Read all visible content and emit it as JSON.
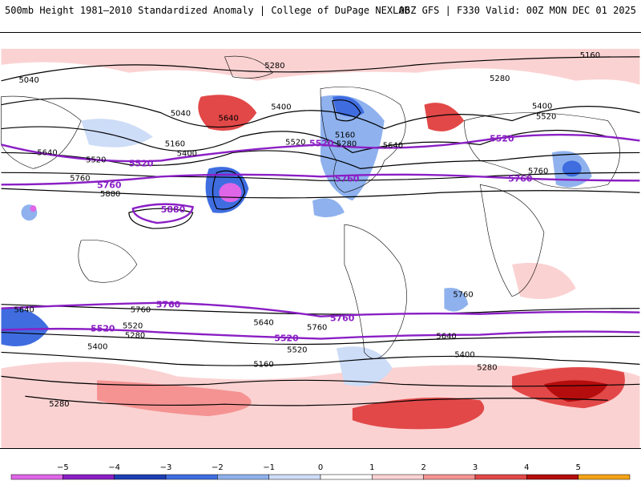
{
  "header": {
    "title_left": "500mb Height 1981–2010 Standardized Anomaly | College of DuPage NEXLAB",
    "title_right": "06Z GFS | F330 Valid: 00Z MON DEC 01 2025"
  },
  "map": {
    "contour_labels": [
      "5040",
      "5280",
      "5160",
      "5400",
      "5640",
      "5520",
      "5760",
      "5880",
      "5280",
      "5400",
      "5520",
      "5160",
      "5640",
      "5040",
      "5400",
      "5520",
      "5640",
      "5760",
      "5280",
      "5160",
      "5640",
      "5760",
      "5520",
      "5400",
      "5280",
      "5160",
      "5280",
      "5640",
      "5760",
      "5520",
      "5400",
      "5280",
      "5640",
      "5760"
    ],
    "highlight_labels": [
      "5520",
      "5760",
      "5880",
      "5520",
      "5760",
      "5520",
      "5760",
      "5760",
      "5520",
      "5760",
      "5520"
    ]
  },
  "colorbar": {
    "ticks": [
      "−5",
      "−4",
      "−3",
      "−2",
      "−1",
      "0",
      "1",
      "2",
      "3",
      "4",
      "5"
    ],
    "colors": [
      "#e066e8",
      "#8a1fc4",
      "#1e3fb5",
      "#3f6de0",
      "#8fb2ee",
      "#cddcf7",
      "#ffffff",
      "#fbd2d2",
      "#f59393",
      "#e24848",
      "#b50d0d",
      "#f4a316"
    ]
  }
}
